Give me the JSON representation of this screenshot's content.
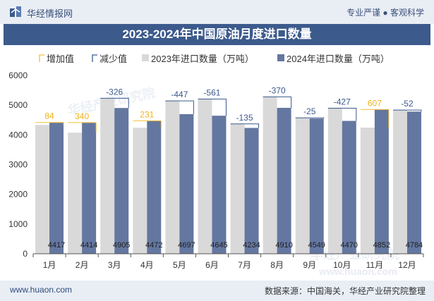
{
  "header": {
    "brand": "华经情报网",
    "tagline": "专业严谨 ● 客观科学"
  },
  "footer": {
    "site": "www.huaon.com",
    "source": "数据来源：中国海关，华经产业研究院整理"
  },
  "colors": {
    "increase": "#f5c034",
    "decrease": "#3c5a8c",
    "bar2023": "#d9d9d9",
    "bar2024": "#6477a0",
    "increase_label": "#f0b21a",
    "decrease_label": "#3c5a8c",
    "title_bg": "#3c5a8c"
  },
  "chart_data": {
    "type": "bar",
    "title": "2023-2024年中国原油月度进口数量",
    "categories": [
      "1月",
      "2月",
      "3月",
      "4月",
      "5月",
      "6月",
      "7月",
      "8月",
      "9月",
      "10月",
      "11月",
      "12月"
    ],
    "legend": [
      "增加值",
      "减少值",
      "2023年进口数量（万吨）",
      "2024年进口数量（万吨）"
    ],
    "legend_position": "top",
    "grid": false,
    "ylim": [
      0,
      6000
    ],
    "yticks": [
      "0",
      "1000",
      "2000",
      "3000",
      "4000",
      "5000",
      "6000"
    ],
    "series": [
      {
        "name": "2023年进口数量（万吨）",
        "values": [
          4333,
          4074,
          5231,
          4241,
          5144,
          5206,
          4369,
          5280,
          4574,
          4897,
          4245,
          4836
        ]
      },
      {
        "name": "2024年进口数量（万吨）",
        "values": [
          4417,
          4414,
          4905,
          4472,
          4697,
          4645,
          4234,
          4910,
          4549,
          4470,
          4852,
          4784
        ]
      }
    ],
    "value_labels_2024": [
      "4417",
      "4414",
      "4905",
      "4472",
      "4697",
      "4645",
      "4234",
      "4910",
      "4549",
      "4470",
      "4852",
      "4784"
    ],
    "change": [
      84,
      340,
      -326,
      231,
      -447,
      -561,
      -135,
      -370,
      -25,
      -427,
      607,
      -52
    ],
    "change_labels": [
      "84",
      "340",
      "-326",
      "231",
      "-447",
      "-561",
      "-135",
      "-370",
      "-25",
      "-427",
      "607",
      "-52"
    ],
    "watermarks": [
      "华经产业研究院",
      "华经产业研究院",
      "www.huaon.com"
    ]
  }
}
